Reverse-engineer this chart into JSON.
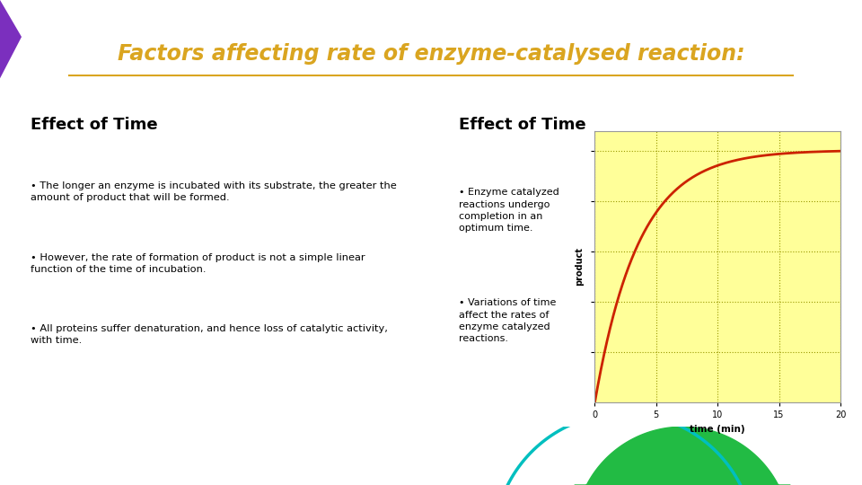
{
  "title": "Factors affecting rate of enzyme-catalysed reaction:",
  "title_color": "#DAA520",
  "title_fontsize": 17,
  "header_bg": "#2E4F54",
  "slide_bg": "#FFFFFF",
  "footer_bg": "#2E4F54",
  "left_heading": "Effect of Time",
  "right_heading": "Effect of Time",
  "left_bullets": [
    "The longer an enzyme is incubated with its substrate, the greater the\namount of product that will be formed.",
    "However, the rate of formation of product is not a simple linear\nfunction of the time of incubation.",
    "All proteins suffer denaturation, and hence loss of catalytic activity,\nwith time."
  ],
  "right_bullets": [
    "Enzyme catalyzed\nreactions undergo\ncompletion in an\noptimum time.",
    "Variations of time\naffect the rates of\nenzyme catalyzed\nreactions."
  ],
  "graph_xlabel": "time (min)",
  "graph_ylabel": "product",
  "graph_xticks": [
    0,
    5,
    10,
    15,
    20
  ],
  "graph_xlim": [
    0,
    20
  ],
  "graph_bg": "#FFFF99",
  "graph_line_color": "#CC2200",
  "graph_grid_color": "#999900",
  "footer_arc_color1": "#00BFBF",
  "footer_arc_color2": "#22BB44",
  "purple_accent": "#7B2FBE"
}
